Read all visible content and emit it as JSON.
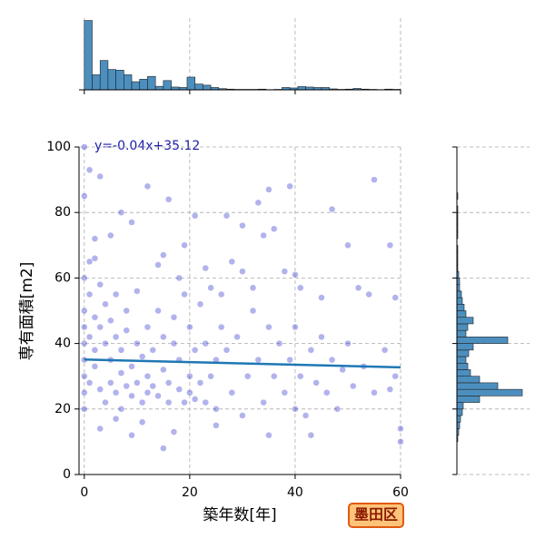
{
  "chart_data": [
    {
      "type": "scatter",
      "x_label": "築年数[年]",
      "y_label": "専有面積[m2]",
      "annotation": "y=-0.04x+35.12",
      "regression": {
        "slope": -0.04,
        "intercept": 35.12,
        "color": "#1f77b4"
      },
      "badge": "墨田区",
      "color": "#2222cc",
      "x": [
        0,
        0,
        1,
        3,
        7,
        12,
        16,
        33,
        27,
        21,
        35,
        39,
        47,
        55,
        58,
        50,
        34,
        36,
        30,
        2,
        5,
        9,
        15,
        19,
        23,
        28,
        30,
        38,
        40,
        24,
        26,
        32,
        41,
        45,
        52,
        54,
        59,
        0,
        0,
        0,
        0,
        0,
        0,
        0,
        0,
        1,
        1,
        1,
        2,
        2,
        2,
        3,
        3,
        3,
        4,
        4,
        4,
        5,
        5,
        5,
        6,
        6,
        6,
        7,
        7,
        7,
        8,
        8,
        8,
        9,
        9,
        10,
        10,
        10,
        11,
        11,
        12,
        12,
        12,
        13,
        13,
        14,
        14,
        15,
        15,
        16,
        16,
        17,
        17,
        18,
        18,
        19,
        19,
        20,
        20,
        20,
        21,
        21,
        22,
        22,
        23,
        23,
        24,
        25,
        25,
        26,
        27,
        28,
        29,
        30,
        31,
        32,
        33,
        34,
        35,
        36,
        37,
        38,
        39,
        40,
        40,
        41,
        42,
        43,
        44,
        45,
        46,
        47,
        48,
        49,
        50,
        51,
        53,
        55,
        57,
        59,
        60,
        60,
        58,
        15,
        17,
        9,
        3,
        6,
        11,
        25,
        35,
        43,
        1,
        2,
        14,
        18
      ],
      "values": [
        100,
        85,
        93,
        91,
        80,
        88,
        84,
        83,
        79,
        79,
        87,
        88,
        81,
        90,
        70,
        70,
        73,
        75,
        76,
        72,
        73,
        77,
        67,
        70,
        63,
        65,
        62,
        62,
        61,
        57,
        55,
        57,
        57,
        54,
        57,
        55,
        54,
        60,
        50,
        45,
        40,
        35,
        30,
        25,
        20,
        55,
        42,
        28,
        48,
        38,
        33,
        58,
        26,
        45,
        40,
        22,
        52,
        35,
        28,
        47,
        25,
        42,
        55,
        31,
        38,
        20,
        44,
        27,
        50,
        33,
        24,
        40,
        28,
        56,
        36,
        22,
        45,
        30,
        25,
        38,
        27,
        50,
        24,
        42,
        32,
        28,
        22,
        40,
        48,
        26,
        35,
        22,
        55,
        30,
        45,
        25,
        38,
        23,
        52,
        28,
        40,
        22,
        30,
        35,
        20,
        45,
        38,
        25,
        42,
        18,
        30,
        50,
        35,
        22,
        45,
        30,
        40,
        25,
        35,
        20,
        45,
        30,
        18,
        38,
        28,
        42,
        25,
        35,
        20,
        32,
        40,
        27,
        33,
        25,
        38,
        30,
        14,
        10,
        26,
        8,
        13,
        12,
        14,
        17,
        16,
        15,
        12,
        12,
        65,
        66,
        64,
        60
      ],
      "xlim": [
        -1,
        60
      ],
      "ylim": [
        0,
        100
      ],
      "xticks": [
        0,
        20,
        40,
        60
      ],
      "yticks": [
        0,
        20,
        40,
        60,
        80,
        100
      ],
      "grid": true
    },
    {
      "type": "histogram",
      "orientation": "vertical",
      "color": "#4c8fbf",
      "bins": [
        0,
        1.5,
        3,
        4.5,
        6,
        7.5,
        9,
        10.5,
        12,
        13.5,
        15,
        16.5,
        18,
        19.5,
        21,
        22.5,
        24,
        25.5,
        27,
        28.5,
        30,
        31.5,
        33,
        34.5,
        36,
        37.5,
        39,
        40.5,
        42,
        43.5,
        45,
        46.5,
        48,
        49.5,
        51,
        52.5,
        54,
        55.5,
        57,
        58.5,
        60
      ],
      "values": [
        300,
        65,
        127,
        88,
        85,
        65,
        35,
        46,
        58,
        15,
        40,
        12,
        10,
        55,
        25,
        20,
        10,
        5,
        3,
        2,
        2,
        2,
        3,
        1,
        2,
        10,
        8,
        14,
        12,
        10,
        10,
        4,
        2,
        3,
        6,
        3,
        2,
        1,
        3,
        2
      ],
      "xlim": [
        -1,
        60
      ],
      "ylim": [
        0,
        310
      ],
      "xticks": [
        0,
        20,
        40,
        60
      ],
      "grid": true
    },
    {
      "type": "histogram",
      "orientation": "horizontal",
      "color": "#4c8fbf",
      "bins": [
        0,
        2,
        4,
        6,
        8,
        10,
        12,
        14,
        16,
        18,
        20,
        22,
        24,
        26,
        28,
        30,
        32,
        34,
        36,
        38,
        40,
        42,
        44,
        46,
        48,
        50,
        52,
        54,
        56,
        58,
        60,
        62,
        64,
        66,
        68,
        70,
        72,
        74,
        76,
        78,
        80,
        82,
        84,
        86,
        88,
        90,
        92,
        94,
        96,
        98,
        100
      ],
      "values": [
        0,
        0,
        0,
        0,
        0,
        1,
        2,
        3,
        4,
        6,
        7,
        25,
        72,
        45,
        25,
        15,
        12,
        10,
        13,
        18,
        56,
        10,
        12,
        18,
        10,
        8,
        6,
        5,
        3,
        3,
        2,
        1,
        1,
        1,
        1,
        0,
        1,
        1,
        1,
        1,
        1,
        0,
        1,
        0,
        0,
        0,
        0,
        0,
        0,
        0
      ],
      "ylim": [
        0,
        100
      ],
      "xlim": [
        0,
        80
      ],
      "yticks": [
        0,
        20,
        40,
        60,
        80,
        100
      ],
      "grid": true
    }
  ]
}
